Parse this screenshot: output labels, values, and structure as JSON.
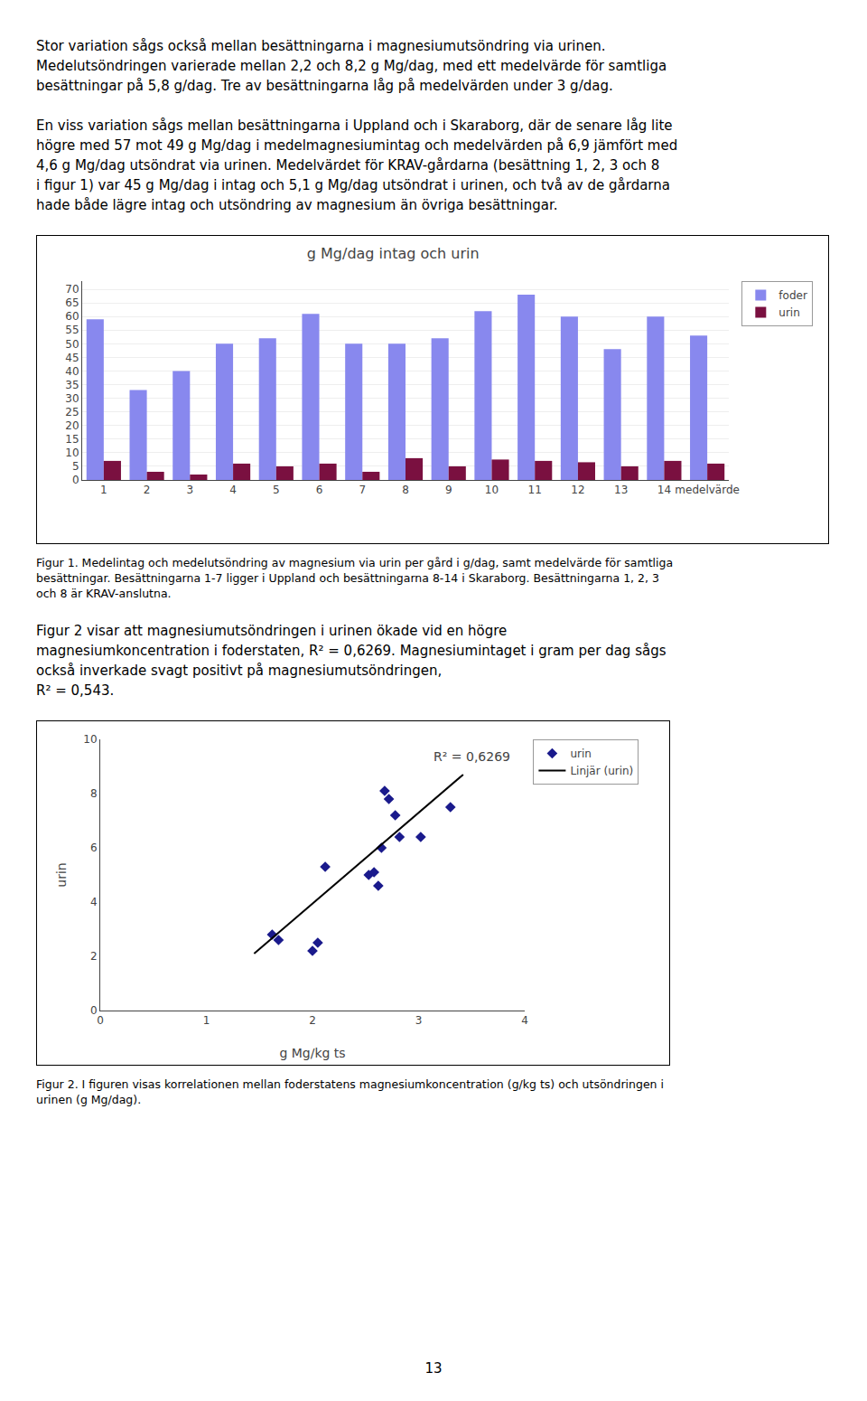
{
  "chart_data": [
    {
      "type": "bar",
      "text_before": [
        [
          "Stor variation sågs också mellan besättningarna i magnesiumutsöndring via urinen.",
          "Medelutsöndringen varierade mellan 2,2 och 8,2 g Mg/dag, med ett medelvärde för samtliga",
          "besättningar på 5,8 g/dag. Tre av besättningarna låg på medelvärden under 3 g/dag."
        ],
        [
          "En viss variation sågs mellan besättningarna i Uppland och i Skaraborg, där de senare låg lite",
          "högre med 57 mot 49 g Mg/dag i medelmagnesiumintag och medelvärden på 6,9 jämfört med",
          "4,6 g Mg/dag utsöndrat via urinen. Medelvärdet för KRAV-gårdarna (besättning 1, 2, 3 och 8",
          "i figur 1) var 45 g Mg/dag i intag och 5,1 g Mg/dag utsöndrat i urinen, och två av de gårdarna",
          "hade både lägre intag och utsöndring av magnesium än övriga besättningar."
        ]
      ],
      "title": "g Mg/dag intag och urin",
      "categories": [
        "1",
        "2",
        "3",
        "4",
        "5",
        "6",
        "7",
        "8",
        "9",
        "10",
        "11",
        "12",
        "13",
        "14",
        "medelvärde"
      ],
      "series": [
        {
          "name": "foder",
          "color": "#8888ee",
          "values": [
            59,
            33,
            40,
            50,
            52,
            61,
            50,
            50,
            52,
            62,
            68,
            60,
            48,
            60,
            53
          ]
        },
        {
          "name": "urin",
          "color": "#7a1040",
          "values": [
            7,
            3,
            2,
            6,
            5,
            6,
            3,
            8,
            5,
            7.5,
            7,
            6.5,
            5,
            7,
            6
          ]
        }
      ],
      "ylim": [
        0,
        73
      ],
      "yticks": [
        0,
        5,
        10,
        15,
        20,
        25,
        30,
        35,
        40,
        45,
        50,
        55,
        60,
        65,
        70
      ],
      "grid": true,
      "legend": "right",
      "caption": [
        "Figur 1. Medelintag och medelutsöndring av magnesium via urin per gård i g/dag, samt medelvärde för samtliga",
        "besättningar. Besättningarna 1-7 ligger i Uppland och besättningarna 8-14 i Skaraborg. Besättningarna 1, 2, 3",
        "och 8 är KRAV-anslutna."
      ]
    },
    {
      "type": "scatter",
      "text_before": [
        [
          "Figur 2 visar att magnesiumutsöndringen i urinen ökade vid en högre",
          "magnesiumkoncentration i foderstaten, R² = 0,6269. Magnesiumintaget i gram per dag sågs",
          "också inverkade svagt positivt på magnesiumutsöndringen,",
          "R² = 0,543."
        ]
      ],
      "xlabel": "g Mg/kg ts",
      "ylabel": "urin",
      "annotations": [
        "R² = 0,6269"
      ],
      "series": [
        {
          "name": "urin",
          "type": "scatter",
          "marker": "diamond",
          "color": "#1a1a8c",
          "x": [
            1.62,
            1.68,
            2.0,
            2.05,
            2.12,
            2.53,
            2.58,
            2.62,
            2.65,
            2.68,
            2.72,
            2.78,
            2.82,
            3.02,
            3.3
          ],
          "values": [
            2.8,
            2.6,
            2.2,
            2.5,
            5.3,
            5.0,
            5.1,
            4.6,
            6.0,
            8.1,
            7.8,
            7.2,
            6.4,
            6.4,
            7.5
          ]
        },
        {
          "name": "Linjär (urin)",
          "type": "line",
          "line_style": "solid",
          "color": "black",
          "x": [
            1.45,
            3.42
          ],
          "values": [
            2.1,
            8.7
          ]
        }
      ],
      "xlim": [
        0,
        4
      ],
      "xticks": [
        0,
        1,
        2,
        3,
        4
      ],
      "ylim": [
        0,
        10
      ],
      "yticks": [
        0,
        2,
        4,
        6,
        8,
        10
      ],
      "grid": false,
      "legend": "right",
      "caption": [
        "Figur 2. I figuren visas korrelationen mellan foderstatens magnesiumkoncentration (g/kg ts) och utsöndringen i",
        "urinen (g Mg/dag)."
      ]
    }
  ],
  "page_number": "13"
}
